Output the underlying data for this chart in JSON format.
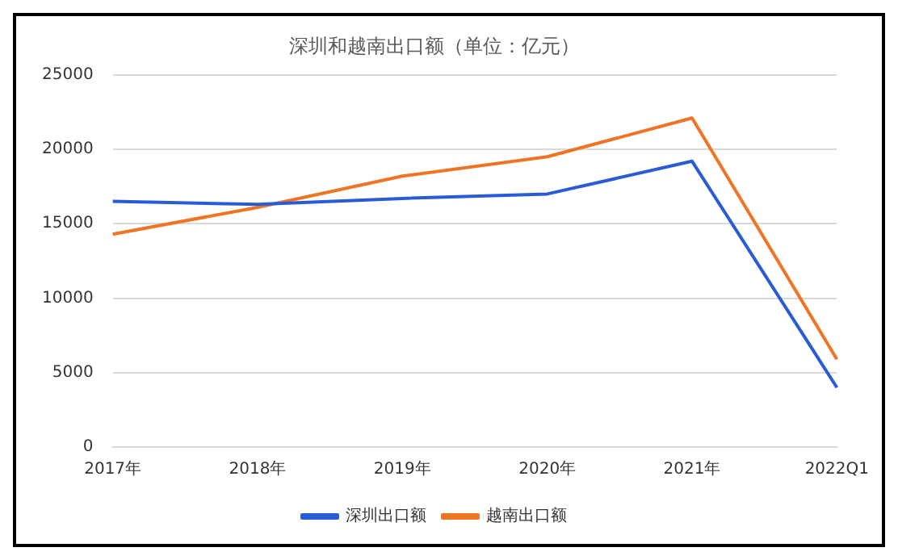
{
  "chart_data": {
    "type": "line",
    "title": "深圳和越南出口额（单位：亿元）",
    "categories": [
      "2017年",
      "2018年",
      "2019年",
      "2020年",
      "2021年",
      "2022Q1"
    ],
    "series": [
      {
        "name": "深圳出口额",
        "color": "#2a5bd7",
        "values": [
          16500,
          16300,
          16700,
          17000,
          19200,
          4000
        ]
      },
      {
        "name": "越南出口额",
        "color": "#f07423",
        "values": [
          14300,
          16100,
          18200,
          19500,
          22100,
          5900
        ]
      }
    ],
    "ylim": [
      0,
      25000
    ],
    "yticks": [
      0,
      5000,
      10000,
      15000,
      20000,
      25000
    ],
    "grid": "y",
    "legend": "bottom",
    "marker": "none",
    "line_style": "solid"
  }
}
